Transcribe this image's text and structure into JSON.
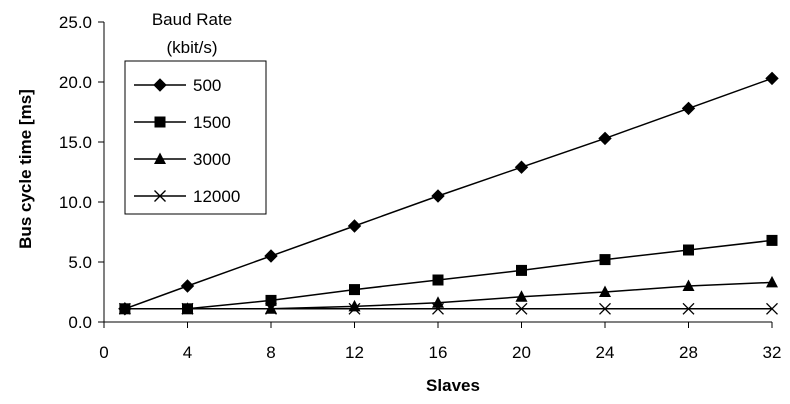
{
  "chart_data": {
    "type": "line",
    "title": "",
    "xlabel": "Slaves",
    "ylabel": "Bus cycle time [ms]",
    "xlim": [
      0,
      32
    ],
    "ylim": [
      0,
      25
    ],
    "x_ticks": [
      "0",
      "4",
      "8",
      "12",
      "16",
      "20",
      "24",
      "28",
      "32"
    ],
    "y_ticks": [
      "0.0",
      "5.0",
      "10.0",
      "15.0",
      "20.0",
      "25.0"
    ],
    "grid": false,
    "legend": {
      "title_line1": "Baud Rate",
      "title_line2": "(kbit/s)",
      "placement": "top-left"
    },
    "x": [
      1,
      4,
      8,
      12,
      16,
      20,
      24,
      28,
      32
    ],
    "series": [
      {
        "name": "500",
        "marker": "diamond",
        "values": [
          1.1,
          3.0,
          5.5,
          8.0,
          10.5,
          12.9,
          15.3,
          17.8,
          20.3
        ]
      },
      {
        "name": "1500",
        "marker": "square",
        "values": [
          1.1,
          1.1,
          1.8,
          2.7,
          3.5,
          4.3,
          5.2,
          6.0,
          6.8
        ]
      },
      {
        "name": "3000",
        "marker": "triangle",
        "values": [
          1.1,
          1.1,
          1.1,
          1.3,
          1.6,
          2.1,
          2.5,
          3.0,
          3.3
        ]
      },
      {
        "name": "12000",
        "marker": "x",
        "values": [
          1.1,
          1.1,
          1.1,
          1.1,
          1.1,
          1.1,
          1.1,
          1.1,
          1.1
        ]
      }
    ],
    "colors": {
      "line": "#000000",
      "background": "#ffffff"
    }
  }
}
